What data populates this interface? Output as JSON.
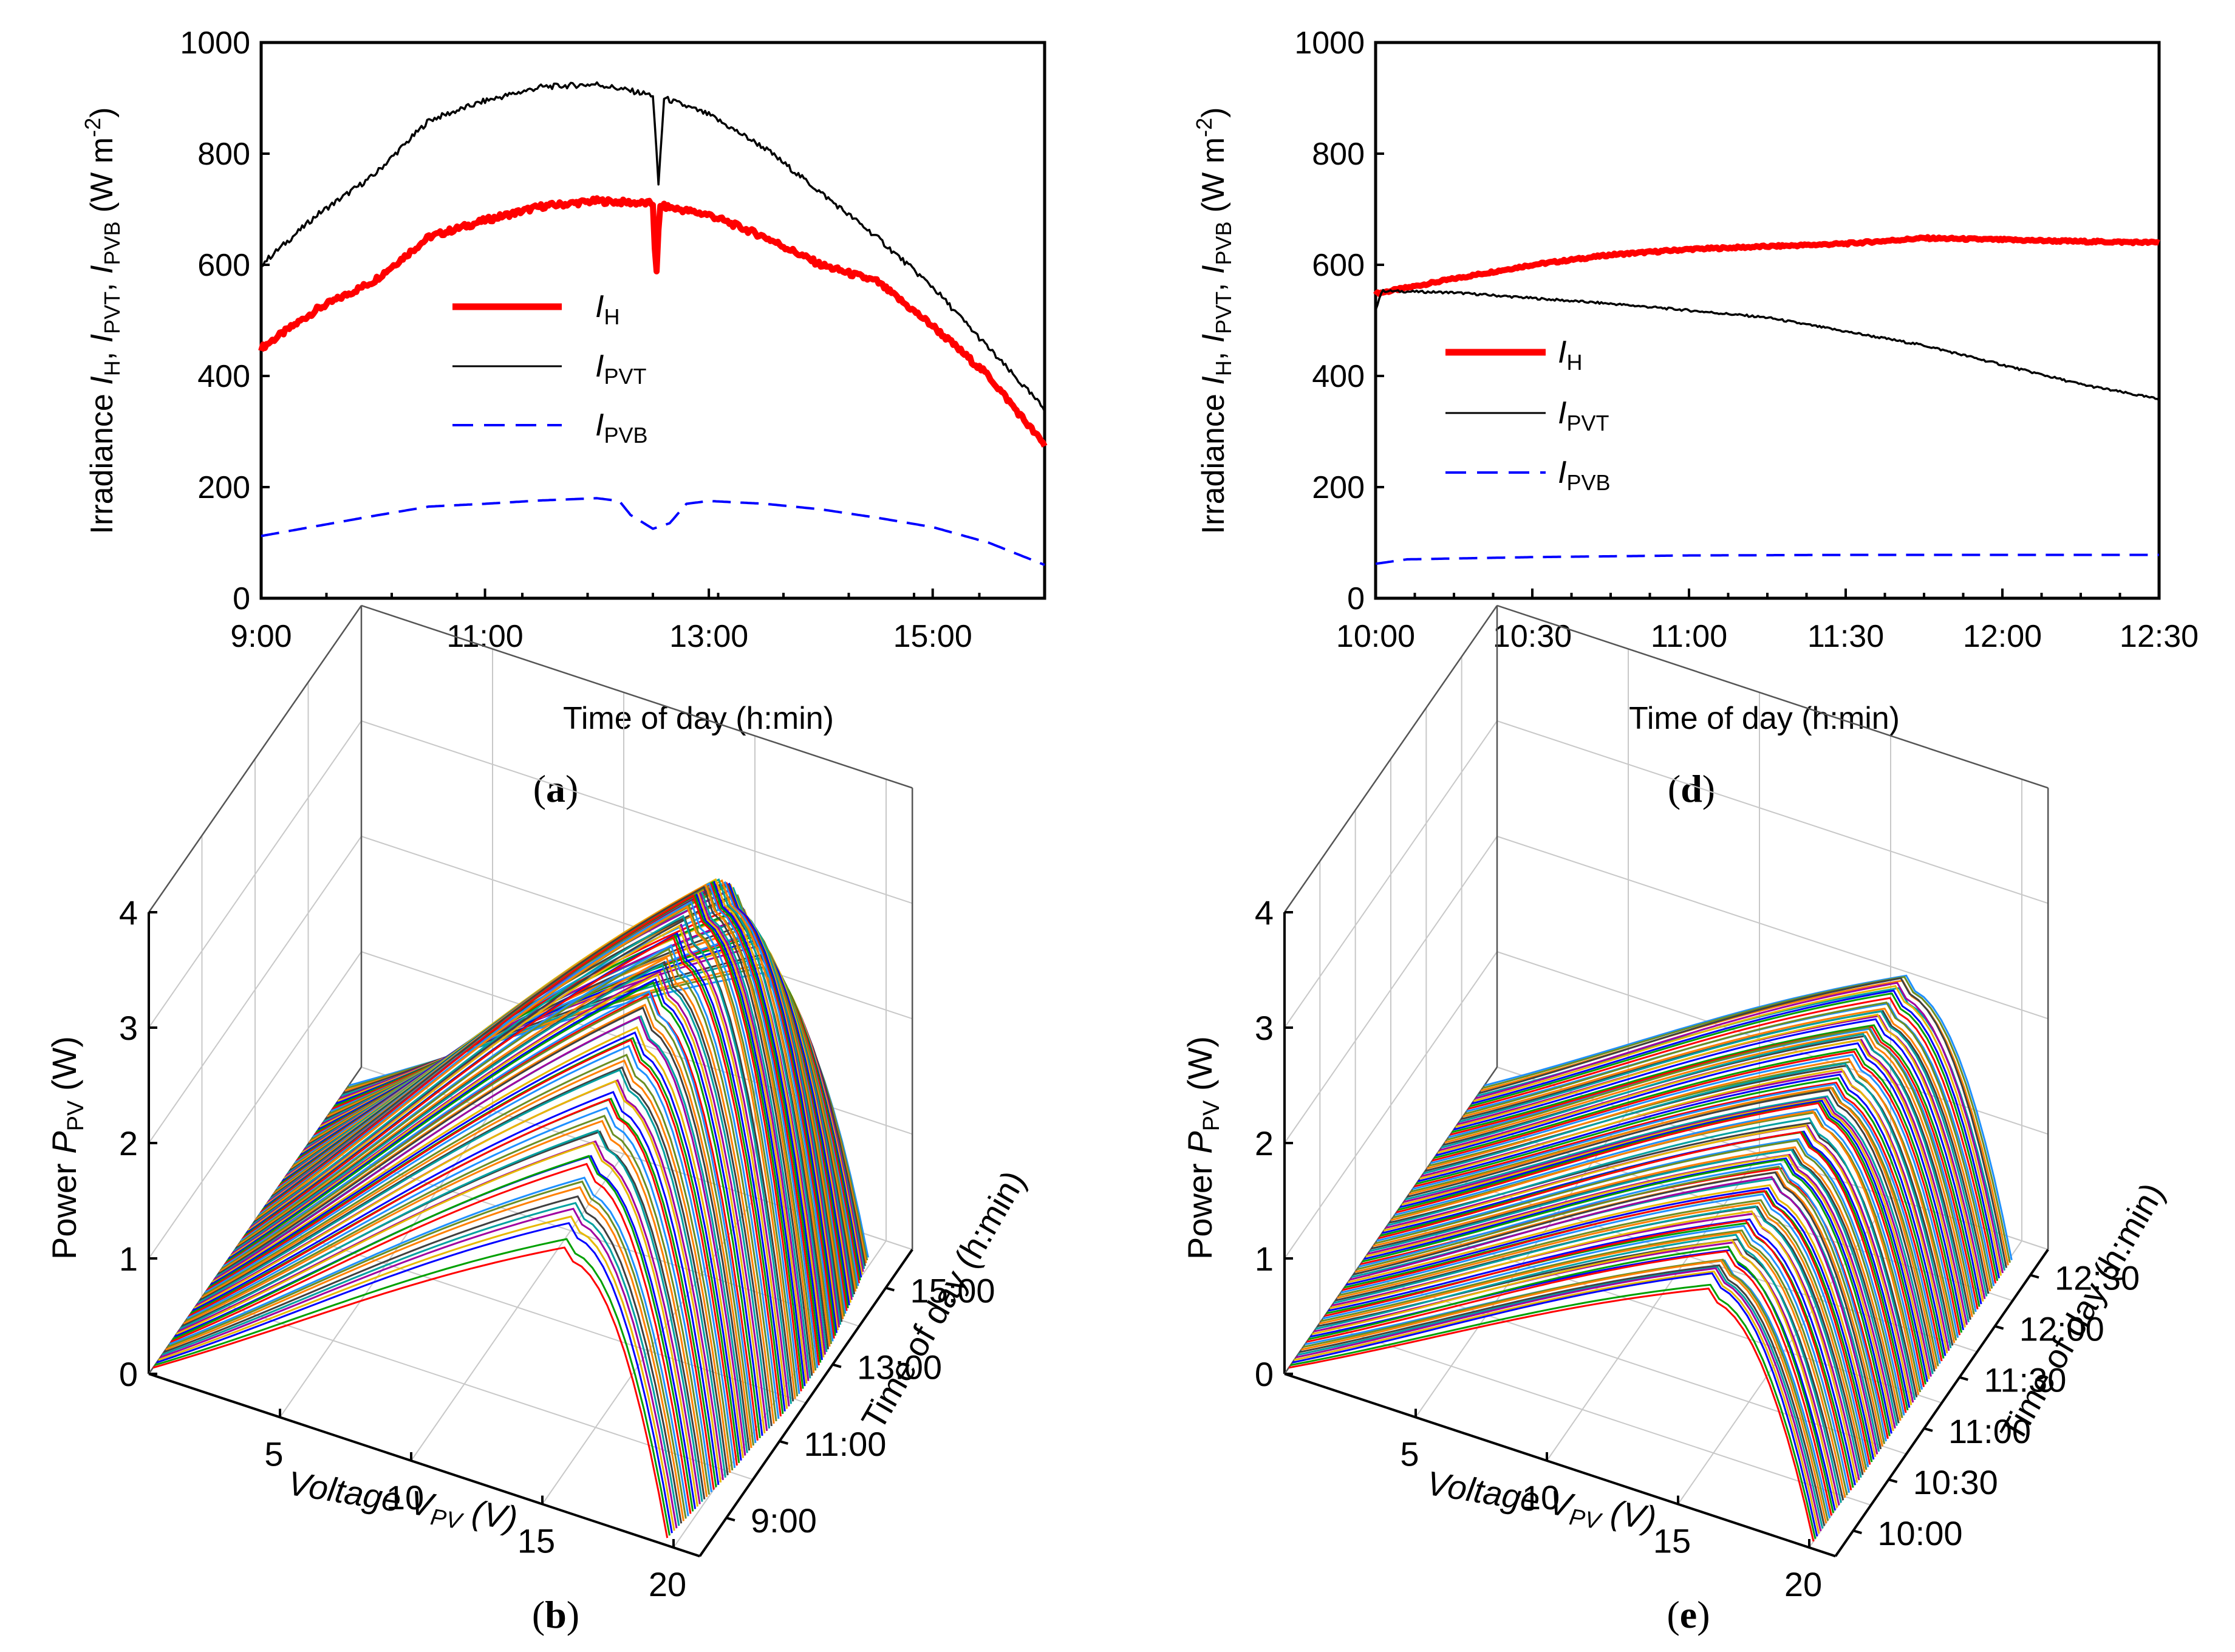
{
  "chart_data": [
    {
      "panel": "a",
      "type": "line",
      "xlabel": "Time of day (h:min)",
      "ylabel": {
        "prefix": "Irradiance ",
        "vars": [
          "I",
          "H",
          "I",
          "PVT",
          "I",
          "PVB"
        ],
        "unit": "(W m",
        "exp": "-2",
        "close": ")"
      },
      "x_ticks": [
        "9:00",
        "11:00",
        "13:00",
        "15:00"
      ],
      "x_range_hours": [
        9,
        16
      ],
      "y_ticks": [
        "0",
        "200",
        "400",
        "600",
        "800",
        "1000"
      ],
      "ylim": [
        0,
        1000
      ],
      "legend": [
        {
          "sym": "I",
          "sub": "H"
        },
        {
          "sym": "I",
          "sub": "PVT"
        },
        {
          "sym": "I",
          "sub": "PVB"
        }
      ],
      "series": [
        {
          "name": "I_H",
          "color": "#ff0000",
          "style": "thick",
          "t": [
            9.0,
            9.5,
            10.0,
            10.5,
            11.0,
            11.5,
            12.0,
            12.5,
            12.53,
            12.56,
            12.6,
            13.0,
            13.5,
            14.0,
            14.5,
            15.0,
            15.5,
            16.0
          ],
          "v": [
            450,
            520,
            570,
            650,
            680,
            705,
            715,
            710,
            570,
            705,
            705,
            690,
            650,
            600,
            570,
            490,
            400,
            275
          ]
        },
        {
          "name": "I_PVT",
          "color": "#000000",
          "style": "thin",
          "t": [
            9.0,
            9.5,
            10.0,
            10.5,
            11.0,
            11.5,
            12.0,
            12.5,
            12.55,
            12.6,
            13.0,
            13.5,
            14.0,
            14.5,
            15.0,
            15.5,
            16.0
          ],
          "v": [
            600,
            690,
            760,
            860,
            895,
            920,
            925,
            905,
            745,
            900,
            870,
            810,
            730,
            650,
            560,
            450,
            340
          ]
        },
        {
          "name": "I_PVB",
          "color": "#0000ff",
          "style": "dashed",
          "t": [
            9.0,
            9.5,
            10.0,
            10.5,
            11.0,
            11.5,
            12.0,
            12.2,
            12.3,
            12.5,
            12.65,
            12.8,
            13.0,
            13.5,
            14.0,
            14.5,
            15.0,
            15.5,
            16.0
          ],
          "v": [
            112,
            130,
            148,
            165,
            170,
            176,
            180,
            175,
            150,
            125,
            135,
            170,
            175,
            170,
            160,
            145,
            128,
            100,
            60
          ]
        }
      ]
    },
    {
      "panel": "d",
      "type": "line",
      "xlabel": "Time of day (h:min)",
      "ylabel": {
        "prefix": "Irradiance ",
        "vars": [
          "I",
          "H",
          "I",
          "PVT",
          "I",
          "PVB"
        ],
        "unit": "(W m",
        "exp": "-2",
        "close": ")"
      },
      "x_ticks": [
        "10:00",
        "10:30",
        "11:00",
        "11:30",
        "12:00",
        "12:30"
      ],
      "x_range_hours": [
        10,
        12.5
      ],
      "y_ticks": [
        "0",
        "200",
        "400",
        "600",
        "800",
        "1000"
      ],
      "ylim": [
        0,
        1000
      ],
      "legend": [
        {
          "sym": "I",
          "sub": "H"
        },
        {
          "sym": "I",
          "sub": "PVT"
        },
        {
          "sym": "I",
          "sub": "PVB"
        }
      ],
      "series": [
        {
          "name": "I_H",
          "color": "#ff0000",
          "style": "thick",
          "t": [
            10.0,
            10.25,
            10.5,
            10.75,
            11.0,
            11.25,
            11.5,
            11.75,
            12.0,
            12.25,
            12.5
          ],
          "v": [
            548,
            575,
            600,
            618,
            628,
            633,
            638,
            648,
            645,
            642,
            640
          ]
        },
        {
          "name": "I_PVT",
          "color": "#000000",
          "style": "thin",
          "t": [
            10.0,
            10.02,
            10.25,
            10.5,
            10.75,
            11.0,
            11.25,
            11.5,
            11.75,
            12.0,
            12.25,
            12.5
          ],
          "v": [
            520,
            553,
            550,
            540,
            530,
            518,
            505,
            480,
            455,
            420,
            385,
            358
          ]
        },
        {
          "name": "I_PVB",
          "color": "#0000ff",
          "style": "dashed",
          "t": [
            10.0,
            10.1,
            10.5,
            11.0,
            11.5,
            12.0,
            12.5
          ],
          "v": [
            62,
            70,
            74,
            77,
            78,
            78,
            78
          ]
        }
      ]
    },
    {
      "panel": "b",
      "type": "surface-3d",
      "zlabel": {
        "prefix": "Power  ",
        "sym": "P",
        "sub": "PV",
        "unit": " (W)"
      },
      "xlabel": {
        "prefix": "Voltage ",
        "sym": "V",
        "sub": "PV",
        "unit": " (V)"
      },
      "ylabel": "Time of day (h:min)",
      "x_ticks": [
        "5",
        "10",
        "15",
        "20"
      ],
      "x_range": [
        0,
        21
      ],
      "z_ticks": [
        "0",
        "1",
        "2",
        "3",
        "4"
      ],
      "zlim": [
        0,
        4
      ],
      "y_ticks": [
        "9:00",
        "11:00",
        "13:00",
        "15:00"
      ],
      "voc_range": [
        19.0,
        21.5
      ],
      "curves": [
        {
          "pmax": 2.3,
          "vmp": 16.0,
          "voc": 19.6
        },
        {
          "pmax": 2.75,
          "vmp": 16.1,
          "voc": 19.8
        },
        {
          "pmax": 3.1,
          "vmp": 16.3,
          "voc": 20.0
        },
        {
          "pmax": 3.4,
          "vmp": 16.4,
          "voc": 20.2
        },
        {
          "pmax": 3.65,
          "vmp": 16.5,
          "voc": 20.3
        },
        {
          "pmax": 3.85,
          "vmp": 16.6,
          "voc": 20.5
        },
        {
          "pmax": 4.0,
          "vmp": 16.7,
          "voc": 20.6
        },
        {
          "pmax": 3.95,
          "vmp": 16.7,
          "voc": 20.6
        },
        {
          "pmax": 3.7,
          "vmp": 16.6,
          "voc": 20.5
        },
        {
          "pmax": 3.3,
          "vmp": 16.4,
          "voc": 20.3
        },
        {
          "pmax": 2.8,
          "vmp": 16.2,
          "voc": 20.1
        },
        {
          "pmax": 2.2,
          "vmp": 16.0,
          "voc": 19.8
        }
      ]
    },
    {
      "panel": "e",
      "type": "surface-3d",
      "zlabel": {
        "prefix": "Power ",
        "sym": "P",
        "sub": "PV",
        "unit": " (W)"
      },
      "xlabel": {
        "prefix": "Voltage ",
        "sym": "V",
        "sub": "PV",
        "unit": " (V)"
      },
      "ylabel": "Time of day (h:min)",
      "x_ticks": [
        "5",
        "10",
        "15",
        "20"
      ],
      "x_range": [
        0,
        21
      ],
      "z_ticks": [
        "0",
        "1",
        "2",
        "3",
        "4"
      ],
      "zlim": [
        0,
        4
      ],
      "y_ticks": [
        "10:00",
        "10:30",
        "11:00",
        "11:30",
        "12:00",
        "12:30"
      ],
      "curves": [
        {
          "pmax": 1.95,
          "vmp": 16.2,
          "voc": 20.0
        },
        {
          "pmax": 2.0,
          "vmp": 16.2,
          "voc": 20.0
        },
        {
          "pmax": 2.05,
          "vmp": 16.3,
          "voc": 20.1
        },
        {
          "pmax": 2.1,
          "vmp": 16.3,
          "voc": 20.1
        },
        {
          "pmax": 2.12,
          "vmp": 16.3,
          "voc": 20.1
        },
        {
          "pmax": 2.15,
          "vmp": 16.3,
          "voc": 20.1
        },
        {
          "pmax": 2.17,
          "vmp": 16.3,
          "voc": 20.1
        },
        {
          "pmax": 2.18,
          "vmp": 16.3,
          "voc": 20.1
        },
        {
          "pmax": 2.2,
          "vmp": 16.3,
          "voc": 20.1
        },
        {
          "pmax": 2.2,
          "vmp": 16.3,
          "voc": 20.1
        }
      ]
    }
  ],
  "captions": {
    "a": {
      "open": "(",
      "letter": "a",
      "close": ")"
    },
    "d": {
      "open": "(",
      "letter": "d",
      "close": ")"
    },
    "b": {
      "open": "(",
      "letter": "b",
      "close": ")"
    },
    "e": {
      "open": "(",
      "letter": "e",
      "close": ")"
    }
  },
  "palette": [
    "#ff0000",
    "#00a000",
    "#0000ff",
    "#e6b800",
    "#a000a0",
    "#00a0a0",
    "#404040",
    "#ff8000",
    "#6b8e23",
    "#1e90ff"
  ]
}
